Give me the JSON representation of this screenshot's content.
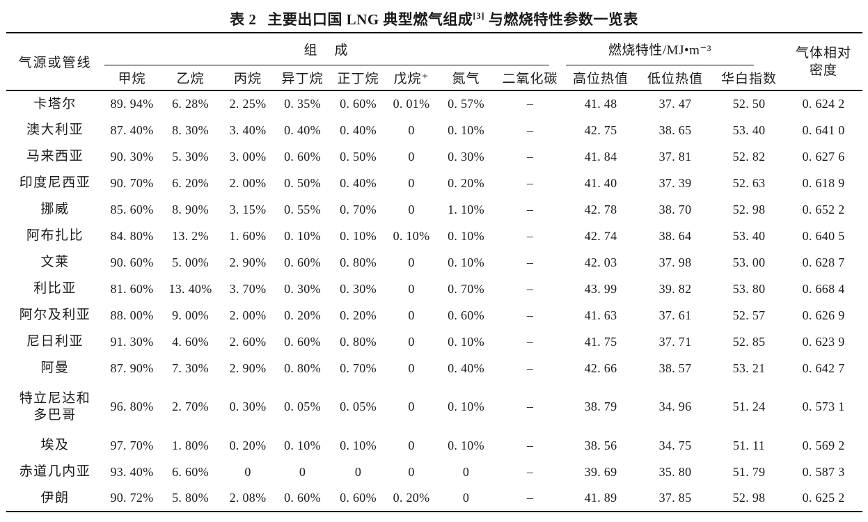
{
  "table": {
    "title": {
      "prefix": "表 2",
      "main": "主要出口国 LNG 典型燃气组成",
      "ref_sup": "[3]",
      "suffix": "与燃烧特性参数一览表"
    },
    "header": {
      "source_col": "气源或管线",
      "composition_group": "组　成",
      "combustion_group": "燃烧特性/MJ•m⁻³",
      "density_col": "气体相对\n密度",
      "sub_columns": [
        "甲烷",
        "乙烷",
        "丙烷",
        "异丁烷",
        "正丁烷",
        "戊烷⁺",
        "氮气",
        "二氧化碳",
        "高位热值",
        "低位热值",
        "华白指数"
      ]
    },
    "rows": [
      {
        "name": "卡塔尔",
        "values": [
          "89. 94%",
          "6. 28%",
          "2. 25%",
          "0. 35%",
          "0. 60%",
          "0. 01%",
          "0. 57%",
          "–",
          "41. 48",
          "37. 47",
          "52. 50",
          "0. 624 2"
        ]
      },
      {
        "name": "澳大利亚",
        "values": [
          "87. 40%",
          "8. 30%",
          "3. 40%",
          "0. 40%",
          "0. 40%",
          "0",
          "0. 10%",
          "–",
          "42. 75",
          "38. 65",
          "53. 40",
          "0. 641 0"
        ]
      },
      {
        "name": "马来西亚",
        "values": [
          "90. 30%",
          "5. 30%",
          "3. 00%",
          "0. 60%",
          "0. 50%",
          "0",
          "0. 30%",
          "–",
          "41. 84",
          "37. 81",
          "52. 82",
          "0. 627 6"
        ]
      },
      {
        "name": "印度尼西亚",
        "values": [
          "90. 70%",
          "6. 20%",
          "2. 00%",
          "0. 50%",
          "0. 40%",
          "0",
          "0. 20%",
          "–",
          "41. 40",
          "37. 39",
          "52. 63",
          "0. 618 9"
        ]
      },
      {
        "name": "挪威",
        "values": [
          "85. 60%",
          "8. 90%",
          "3. 15%",
          "0. 55%",
          "0. 70%",
          "0",
          "1. 10%",
          "–",
          "42. 78",
          "38. 70",
          "52. 98",
          "0. 652 2"
        ]
      },
      {
        "name": "阿布扎比",
        "values": [
          "84. 80%",
          "13. 2%",
          "1. 60%",
          "0. 10%",
          "0. 10%",
          "0. 10%",
          "0. 10%",
          "–",
          "42. 74",
          "38. 64",
          "53. 40",
          "0. 640 5"
        ]
      },
      {
        "name": "文莱",
        "values": [
          "90. 60%",
          "5. 00%",
          "2. 90%",
          "0. 60%",
          "0. 80%",
          "0",
          "0. 10%",
          "–",
          "42. 03",
          "37. 98",
          "53. 00",
          "0. 628 7"
        ]
      },
      {
        "name": "利比亚",
        "values": [
          "81. 60%",
          "13. 40%",
          "3. 70%",
          "0. 30%",
          "0. 30%",
          "0",
          "0. 70%",
          "–",
          "43. 99",
          "39. 82",
          "53. 80",
          "0. 668 4"
        ]
      },
      {
        "name": "阿尔及利亚",
        "values": [
          "88. 00%",
          "9. 00%",
          "2. 00%",
          "0. 20%",
          "0. 20%",
          "0",
          "0. 60%",
          "–",
          "41. 63",
          "37. 61",
          "52. 57",
          "0. 626 9"
        ]
      },
      {
        "name": "尼日利亚",
        "values": [
          "91. 30%",
          "4. 60%",
          "2. 60%",
          "0. 60%",
          "0. 80%",
          "0",
          "0. 10%",
          "–",
          "41. 75",
          "37. 71",
          "52. 85",
          "0. 623 9"
        ]
      },
      {
        "name": "阿曼",
        "values": [
          "87. 90%",
          "7. 30%",
          "2. 90%",
          "0. 80%",
          "0. 70%",
          "0",
          "0. 40%",
          "–",
          "42. 66",
          "38. 57",
          "53. 21",
          "0. 642 7"
        ]
      },
      {
        "name": "特立尼达和\n多巴哥",
        "values": [
          "96. 80%",
          "2. 70%",
          "0. 30%",
          "0. 05%",
          "0. 05%",
          "0",
          "0. 10%",
          "–",
          "38. 79",
          "34. 96",
          "51. 24",
          "0. 573 1"
        ]
      },
      {
        "name": "埃及",
        "values": [
          "97. 70%",
          "1. 80%",
          "0. 20%",
          "0. 10%",
          "0. 10%",
          "0",
          "0. 10%",
          "–",
          "38. 56",
          "34. 75",
          "51. 11",
          "0. 569 2"
        ]
      },
      {
        "name": "赤道几内亚",
        "values": [
          "93. 40%",
          "6. 60%",
          "0",
          "0",
          "0",
          "0",
          "0",
          "–",
          "39. 69",
          "35. 80",
          "51. 79",
          "0. 587 3"
        ]
      },
      {
        "name": "伊朗",
        "values": [
          "90. 72%",
          "5. 80%",
          "2. 08%",
          "0. 60%",
          "0. 60%",
          "0. 20%",
          "0",
          "–",
          "41. 89",
          "37. 85",
          "52. 98",
          "0. 625 2"
        ]
      }
    ]
  }
}
